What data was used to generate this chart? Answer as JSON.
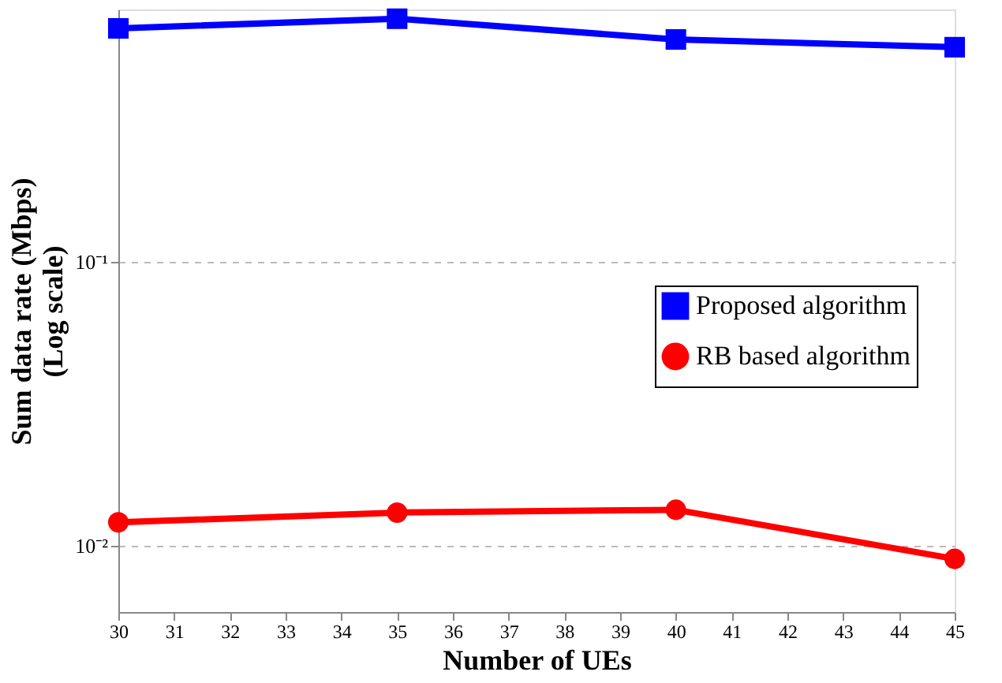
{
  "chart_data": {
    "type": "line",
    "xlabel": "Number of UEs",
    "ylabel": "Sum data rate (Mbps)\n(Log scale)",
    "x": [
      30,
      35,
      40,
      45
    ],
    "series": [
      {
        "name": "Proposed algorithm",
        "color": "#0000ff",
        "marker": "square",
        "values": [
          0.664,
          0.718,
          0.607,
          0.57
        ]
      },
      {
        "name": "RB based algorithm",
        "color": "#ff0000",
        "marker": "circle",
        "values": [
          0.0121,
          0.0131,
          0.0134,
          0.009
        ]
      }
    ],
    "log": "y",
    "xlim": [
      30,
      45
    ],
    "xticks": [
      30,
      31,
      32,
      33,
      34,
      35,
      36,
      37,
      38,
      39,
      40,
      41,
      42,
      43,
      44,
      45
    ],
    "ylim": [
      0.00585,
      0.774
    ],
    "yticks": [
      {
        "value": 0.01,
        "label": "10⁻²"
      },
      {
        "value": 0.1,
        "label": "10⁻¹"
      }
    ],
    "grid": "y",
    "legend": "right",
    "line_style": "solid"
  }
}
